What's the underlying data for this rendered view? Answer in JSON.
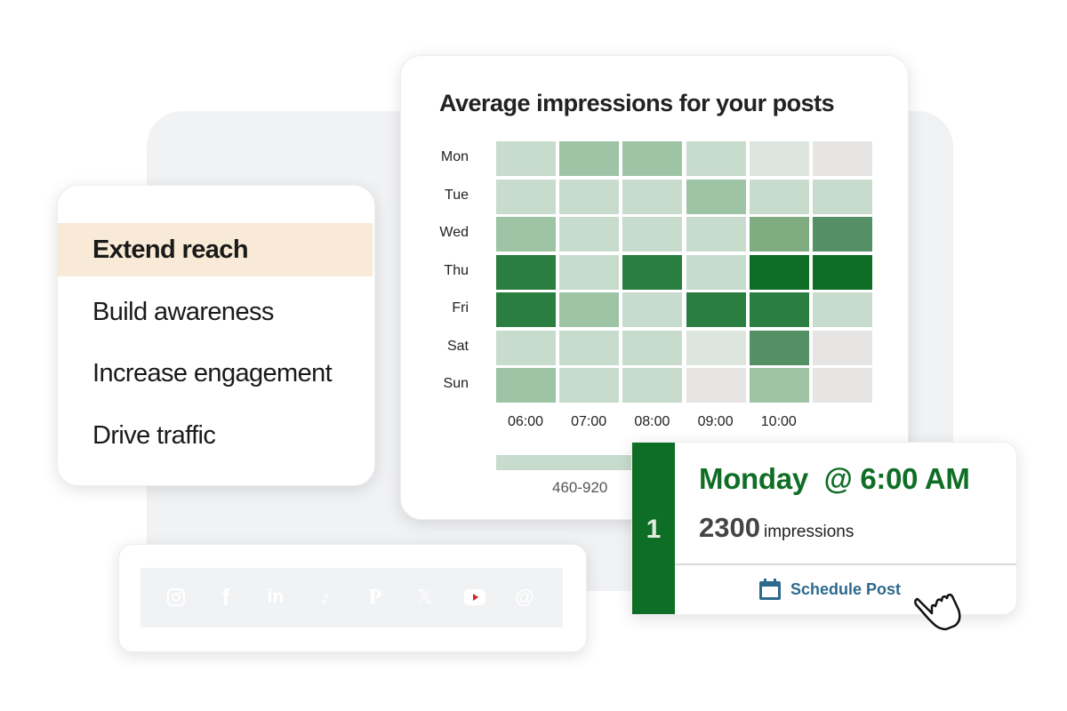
{
  "goals": {
    "items": [
      {
        "label": "Extend reach",
        "active": true
      },
      {
        "label": "Build awareness",
        "active": false
      },
      {
        "label": "Increase engagement",
        "active": false
      },
      {
        "label": "Drive traffic",
        "active": false
      }
    ]
  },
  "chart_data": {
    "type": "heatmap",
    "title": "Average impressions for your posts",
    "rows": [
      "Mon",
      "Tue",
      "Wed",
      "Thu",
      "Fri",
      "Sat",
      "Sun"
    ],
    "columns": [
      "06:00",
      "07:00",
      "08:00",
      "09:00",
      "10:00",
      ""
    ],
    "levels": [
      [
        2,
        3,
        3,
        2,
        1,
        0
      ],
      [
        2,
        2,
        2,
        3,
        2,
        2
      ],
      [
        3,
        2,
        2,
        2,
        4,
        5
      ],
      [
        6,
        2,
        6,
        2,
        7,
        7
      ],
      [
        6,
        3,
        2,
        6,
        6,
        2
      ],
      [
        2,
        2,
        2,
        1,
        5,
        0
      ],
      [
        3,
        2,
        2,
        0,
        3,
        0
      ]
    ],
    "palette": [
      "#e7e4e4",
      "#dce6de",
      "#c8dccd",
      "#9dc4a5",
      "#7eab80",
      "#548f65",
      "#2a7f40",
      "#0f6e25"
    ],
    "legend": [
      "460-920"
    ]
  },
  "result": {
    "rank": "1",
    "title": "Monday  @ 6:00 AM",
    "count": "2300",
    "unit": "impressions",
    "action": "Schedule Post",
    "accent": "#0f6e25",
    "action_color": "#2e6a8e"
  },
  "social": [
    {
      "name": "instagram",
      "color": "#e4196e"
    },
    {
      "name": "facebook",
      "color": "#3b66b0"
    },
    {
      "name": "linkedin",
      "color": "#1266b0"
    },
    {
      "name": "tiktok",
      "color": "#1c1c1c"
    },
    {
      "name": "pinterest",
      "color": "#d51f2b"
    },
    {
      "name": "x",
      "color": "#1c1c1c"
    },
    {
      "name": "youtube",
      "color": "#d51f2b"
    },
    {
      "name": "threads",
      "color": "#1c1c1c"
    }
  ]
}
